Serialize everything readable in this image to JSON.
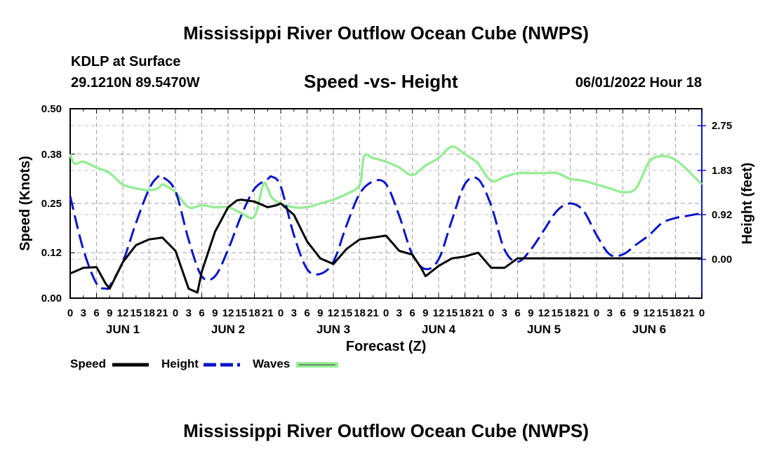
{
  "header": {
    "title": "Mississippi River Outflow Ocean Cube (NWPS)",
    "station": "KDLP at Surface",
    "coords": "29.1210N  89.5470W",
    "subtitle": "Speed -vs- Height",
    "issued": "06/01/2022 Hour 18"
  },
  "footer": {
    "title": "Mississippi River Outflow Ocean Cube (NWPS)"
  },
  "legend": {
    "speed": "Speed",
    "height": "Height",
    "waves": "Waves"
  },
  "colors": {
    "speed": "#000000",
    "height": "#0a14c8",
    "waves": "#98ec98",
    "grid": "#a0a0a0"
  },
  "chart_data": {
    "type": "line",
    "xlabel": "Forecast (Z)",
    "ylabel_left": "Speed (Knots)",
    "ylabel_right": "Height (feet)",
    "x_unit": "forecast hours from Jun 1 00Z",
    "xlim": [
      0,
      144
    ],
    "ylim_left": [
      0,
      0.5
    ],
    "ylim_right": [
      -0.8,
      3.1
    ],
    "left_ticks": [
      0.0,
      0.12,
      0.25,
      0.38,
      0.5
    ],
    "left_tick_labels": [
      "0.00",
      "0.12",
      "0.25",
      "0.38",
      "0.50"
    ],
    "right_ticks": [
      0.0,
      0.92,
      1.83,
      2.75
    ],
    "right_tick_labels": [
      "0.00",
      "0.92",
      "1.83",
      "2.75"
    ],
    "x_tick_labels": [
      "0",
      "3",
      "6",
      "9",
      "12",
      "15",
      "18",
      "21",
      "0",
      "3",
      "6",
      "9",
      "12",
      "15",
      "18",
      "21",
      "0",
      "3",
      "6",
      "9",
      "12",
      "15",
      "18",
      "21",
      "0",
      "3",
      "6",
      "9",
      "12",
      "15",
      "18",
      "21",
      "0",
      "3",
      "6",
      "9",
      "12",
      "15",
      "18",
      "21",
      "0",
      "3",
      "6",
      "9",
      "12",
      "15",
      "18",
      "21",
      "0"
    ],
    "day_labels": [
      {
        "label": "JUN 1",
        "hour": 12
      },
      {
        "label": "JUN 2",
        "hour": 36
      },
      {
        "label": "JUN 3",
        "hour": 60
      },
      {
        "label": "JUN 4",
        "hour": 84
      },
      {
        "label": "JUN 5",
        "hour": 108
      },
      {
        "label": "JUN 6",
        "hour": 132
      }
    ],
    "series": [
      {
        "name": "Speed",
        "axis": "left",
        "style": "solid",
        "x": [
          0,
          3,
          6,
          8,
          9,
          12,
          15,
          18,
          21,
          24,
          27,
          28,
          29,
          30,
          33,
          36,
          38,
          39,
          42,
          45,
          47,
          48,
          51,
          54,
          57,
          60,
          63,
          66,
          69,
          72,
          75,
          78,
          80,
          81,
          84,
          87,
          90,
          93,
          96,
          99,
          102,
          105,
          108,
          111,
          114,
          117,
          120,
          123,
          126,
          129,
          132,
          135,
          138,
          141,
          144
        ],
        "y": [
          0.065,
          0.08,
          0.082,
          0.04,
          0.025,
          0.095,
          0.14,
          0.155,
          0.16,
          0.125,
          0.025,
          0.02,
          0.015,
          0.07,
          0.175,
          0.24,
          0.258,
          0.26,
          0.255,
          0.24,
          0.245,
          0.25,
          0.22,
          0.15,
          0.105,
          0.09,
          0.13,
          0.155,
          0.16,
          0.165,
          0.125,
          0.115,
          0.08,
          0.058,
          0.085,
          0.105,
          0.11,
          0.12,
          0.08,
          0.08,
          0.105,
          0.105,
          0.105,
          0.105,
          0.105,
          0.105,
          0.105,
          0.105,
          0.105,
          0.105,
          0.105,
          0.105,
          0.105,
          0.105,
          0.105
        ]
      },
      {
        "name": "Height",
        "axis": "right",
        "style": "dashed",
        "x": [
          0,
          3,
          6,
          8,
          9,
          12,
          15,
          18,
          20,
          21,
          24,
          27,
          30,
          33,
          36,
          39,
          42,
          45,
          46,
          48,
          51,
          54,
          57,
          60,
          63,
          66,
          69,
          72,
          75,
          78,
          81,
          84,
          87,
          90,
          93,
          96,
          99,
          102,
          105,
          108,
          111,
          114,
          117,
          120,
          123,
          126,
          129,
          132,
          135,
          138,
          141,
          144
        ],
        "y": [
          1.3,
          0.2,
          -0.5,
          -0.6,
          -0.55,
          -0.05,
          0.75,
          1.45,
          1.7,
          1.7,
          1.4,
          0.4,
          -0.35,
          -0.35,
          0.2,
          0.9,
          1.45,
          1.65,
          1.7,
          1.5,
          0.5,
          -0.2,
          -0.3,
          -0.05,
          0.7,
          1.35,
          1.6,
          1.55,
          0.9,
          0.1,
          -0.2,
          0.0,
          0.8,
          1.55,
          1.65,
          1.1,
          0.2,
          -0.05,
          0.2,
          0.6,
          1.0,
          1.15,
          1.0,
          0.5,
          0.1,
          0.1,
          0.3,
          0.5,
          0.75,
          0.85,
          0.9,
          0.95
        ]
      },
      {
        "name": "Waves",
        "axis": "left",
        "style": "solid",
        "x": [
          0,
          1,
          3,
          6,
          9,
          12,
          15,
          18,
          20,
          21,
          22,
          24,
          27,
          30,
          33,
          36,
          39,
          42,
          44,
          45,
          46,
          48,
          51,
          54,
          57,
          60,
          63,
          66,
          67,
          69,
          72,
          75,
          78,
          81,
          84,
          87,
          90,
          92,
          93,
          96,
          99,
          102,
          105,
          108,
          111,
          114,
          117,
          120,
          123,
          126,
          129,
          132,
          135,
          138,
          141,
          144
        ],
        "y": [
          0.38,
          0.355,
          0.36,
          0.345,
          0.33,
          0.3,
          0.29,
          0.285,
          0.29,
          0.3,
          0.295,
          0.28,
          0.24,
          0.245,
          0.24,
          0.24,
          0.225,
          0.215,
          0.3,
          0.29,
          0.265,
          0.25,
          0.24,
          0.24,
          0.25,
          0.26,
          0.275,
          0.3,
          0.375,
          0.37,
          0.36,
          0.345,
          0.325,
          0.35,
          0.37,
          0.4,
          0.38,
          0.365,
          0.355,
          0.31,
          0.32,
          0.33,
          0.33,
          0.33,
          0.33,
          0.315,
          0.31,
          0.3,
          0.29,
          0.28,
          0.29,
          0.36,
          0.375,
          0.365,
          0.335,
          0.3
        ]
      }
    ]
  }
}
